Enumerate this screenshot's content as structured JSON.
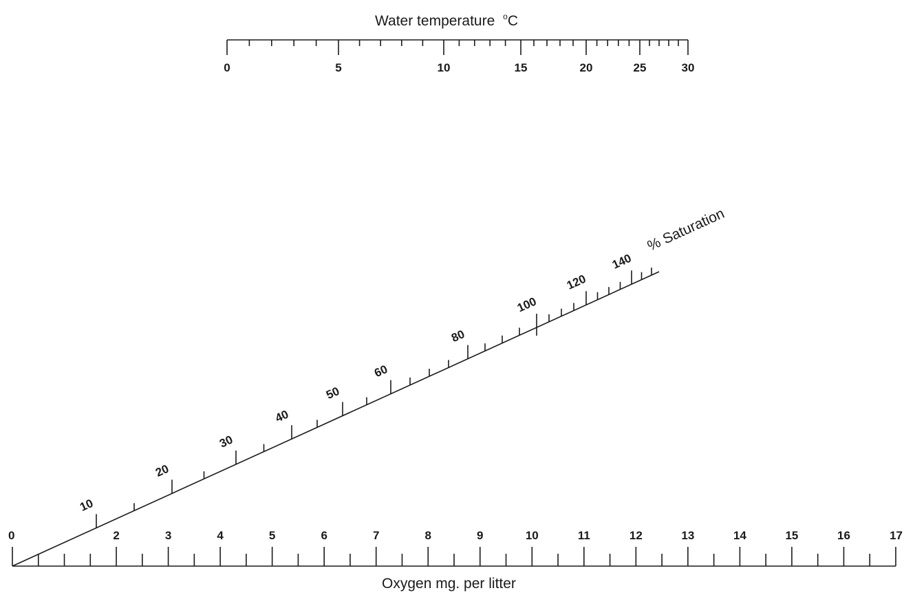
{
  "temperature_scale": {
    "title": "Water temperature",
    "unit": "°C",
    "range": [
      0,
      30
    ],
    "labeled_ticks": [
      "0",
      "5",
      "10",
      "15",
      "20",
      "25",
      "30"
    ],
    "minor_ticks": [
      1,
      2,
      3,
      4,
      6,
      7,
      8,
      9,
      11,
      12,
      13,
      14,
      16,
      17,
      18,
      19,
      21,
      22,
      23,
      24,
      26,
      27,
      28,
      29
    ]
  },
  "saturation_scale": {
    "title": "% Saturation",
    "range": [
      0,
      150
    ],
    "labeled_ticks": [
      "10",
      "20",
      "30",
      "40",
      "50",
      "60",
      "80",
      "100",
      "120",
      "140"
    ],
    "minor_ticks": [
      15,
      25,
      35,
      45,
      55,
      65,
      70,
      75,
      85,
      90,
      95,
      105,
      110,
      115,
      125,
      130,
      135,
      145,
      150
    ],
    "highlighted_tick": 100
  },
  "oxygen_scale": {
    "title": "Oxygen mg. per litter",
    "range": [
      0,
      17
    ],
    "labeled_ticks": [
      "0",
      "2",
      "3",
      "4",
      "5",
      "6",
      "7",
      "8",
      "9",
      "10",
      "11",
      "12",
      "13",
      "14",
      "15",
      "16",
      "17"
    ],
    "minor_ticks": [
      0.5,
      1,
      1.5,
      2.5,
      3.5,
      4.5,
      5.5,
      6.5,
      7.5,
      8.5,
      9.5,
      10.5,
      11.5,
      12.5,
      13.5,
      14.5,
      15.5,
      16.5
    ]
  },
  "colors": {
    "ink": "#1a1a1a",
    "background": "#ffffff"
  }
}
